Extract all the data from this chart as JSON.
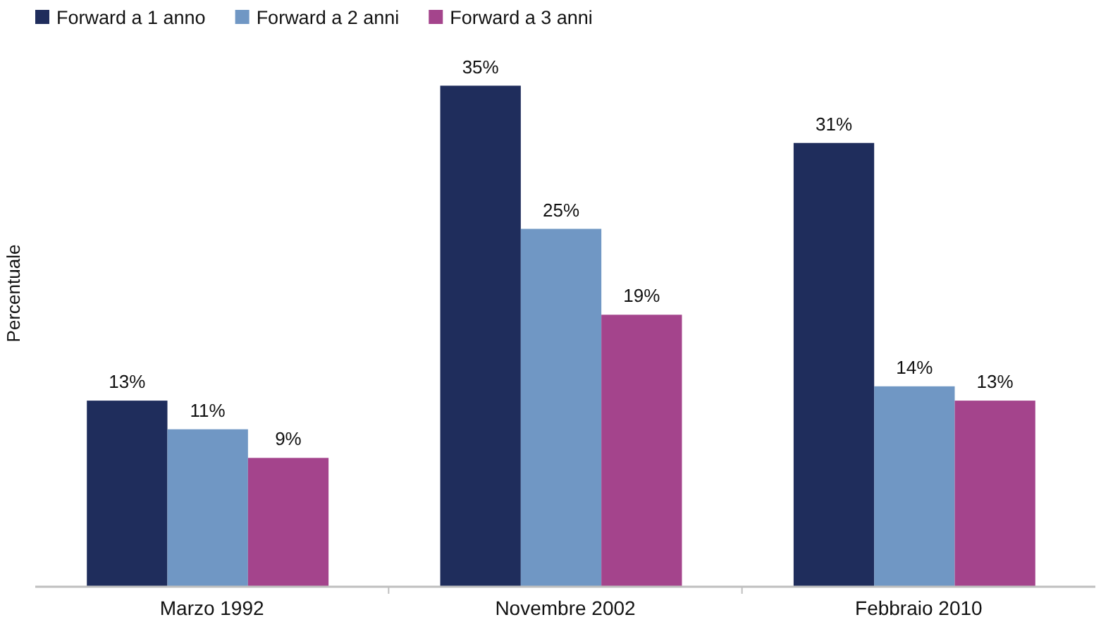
{
  "chart_data": {
    "type": "bar",
    "ylabel": "Percentuale",
    "categories": [
      "Marzo 1992",
      "Novembre 2002",
      "Febbraio 2010"
    ],
    "series": [
      {
        "name": "Forward a 1 anno",
        "color": "#1f2d5c",
        "values": [
          13,
          35,
          31
        ],
        "value_labels": [
          "13%",
          "35%",
          "31%"
        ]
      },
      {
        "name": "Forward a 2 anni",
        "color": "#7097c4",
        "values": [
          11,
          25,
          14
        ],
        "value_labels": [
          "11%",
          "25%",
          "14%"
        ]
      },
      {
        "name": "Forward a 3 anni",
        "color": "#a4448c",
        "values": [
          9,
          19,
          13
        ],
        "value_labels": [
          "9%",
          "19%",
          "13%"
        ]
      }
    ],
    "ylim": [
      0,
      40
    ],
    "legend": "top left"
  }
}
